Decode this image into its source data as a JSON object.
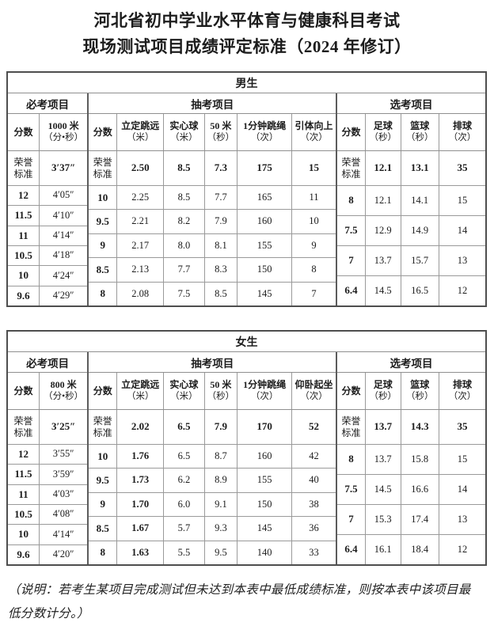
{
  "page": {
    "title_line1": "河北省初中学业水平体育与健康科目考试",
    "title_line2": "现场测试项目成绩评定标准（2024 年修订）",
    "footnote_line1": "（说明：若考生某项目完成测试但未达到本表中最低成绩标准，则按本表中该项目最",
    "footnote_line2": "低分数计分。）"
  },
  "score_header": "分数",
  "honor_label": "荣誉\n标准",
  "tables": [
    {
      "gender": "男生",
      "sections": [
        {
          "name": "必考项目",
          "columns": [
            [
              "1000 米",
              "（分•秒）"
            ]
          ],
          "honor_values": [
            "3′37″"
          ],
          "bold_value_cols": [],
          "rows": [
            {
              "score": "12",
              "values": [
                "4′05″"
              ]
            },
            {
              "score": "11.5",
              "values": [
                "4′10″"
              ]
            },
            {
              "score": "11",
              "values": [
                "4′14″"
              ]
            },
            {
              "score": "10.5",
              "values": [
                "4′18″"
              ]
            },
            {
              "score": "10",
              "values": [
                "4′24″"
              ]
            },
            {
              "score": "9.6",
              "values": [
                "4′29″"
              ]
            }
          ]
        },
        {
          "name": "抽考项目",
          "columns": [
            [
              "立定跳远",
              "（米）"
            ],
            [
              "实心球",
              "（米）"
            ],
            [
              "50 米",
              "（秒）"
            ],
            [
              "1分钟跳绳",
              "（次）"
            ],
            [
              "引体向上",
              "（次）"
            ]
          ],
          "honor_values": [
            "2.50",
            "8.5",
            "7.3",
            "175",
            "15"
          ],
          "bold_value_cols": [],
          "rows": [
            {
              "score": "10",
              "values": [
                "2.25",
                "8.5",
                "7.7",
                "165",
                "11"
              ]
            },
            {
              "score": "9.5",
              "values": [
                "2.21",
                "8.2",
                "7.9",
                "160",
                "10"
              ]
            },
            {
              "score": "9",
              "values": [
                "2.17",
                "8.0",
                "8.1",
                "155",
                "9"
              ]
            },
            {
              "score": "8.5",
              "values": [
                "2.13",
                "7.7",
                "8.3",
                "150",
                "8"
              ]
            },
            {
              "score": "8",
              "values": [
                "2.08",
                "7.5",
                "8.5",
                "145",
                "7"
              ]
            }
          ]
        },
        {
          "name": "选考项目",
          "columns": [
            [
              "足球",
              "（秒）"
            ],
            [
              "篮球",
              "（秒）"
            ],
            [
              "排球",
              "（次）"
            ]
          ],
          "honor_values": [
            "12.1",
            "13.1",
            "35"
          ],
          "bold_value_cols": [],
          "rows": [
            {
              "score": "8",
              "values": [
                "12.1",
                "14.1",
                "15"
              ]
            },
            {
              "score": "7.5",
              "values": [
                "12.9",
                "14.9",
                "14"
              ]
            },
            {
              "score": "7",
              "values": [
                "13.7",
                "15.7",
                "13"
              ]
            },
            {
              "score": "6.4",
              "values": [
                "14.5",
                "16.5",
                "12"
              ]
            }
          ]
        }
      ]
    },
    {
      "gender": "女生",
      "sections": [
        {
          "name": "必考项目",
          "columns": [
            [
              "800 米",
              "（分•秒）"
            ]
          ],
          "honor_values": [
            "3′25″"
          ],
          "bold_value_cols": [],
          "rows": [
            {
              "score": "12",
              "values": [
                "3′55″"
              ]
            },
            {
              "score": "11.5",
              "values": [
                "3′59″"
              ]
            },
            {
              "score": "11",
              "values": [
                "4′03″"
              ]
            },
            {
              "score": "10.5",
              "values": [
                "4′08″"
              ]
            },
            {
              "score": "10",
              "values": [
                "4′14″"
              ]
            },
            {
              "score": "9.6",
              "values": [
                "4′20″"
              ]
            }
          ]
        },
        {
          "name": "抽考项目",
          "columns": [
            [
              "立定跳远",
              "（米）"
            ],
            [
              "实心球",
              "（米）"
            ],
            [
              "50 米",
              "（秒）"
            ],
            [
              "1分钟跳绳",
              "（次）"
            ],
            [
              "仰卧起坐",
              "（次）"
            ]
          ],
          "honor_values": [
            "2.02",
            "6.5",
            "7.9",
            "170",
            "52"
          ],
          "bold_value_cols": [
            0
          ],
          "rows": [
            {
              "score": "10",
              "values": [
                "1.76",
                "6.5",
                "8.7",
                "160",
                "42"
              ]
            },
            {
              "score": "9.5",
              "values": [
                "1.73",
                "6.2",
                "8.9",
                "155",
                "40"
              ]
            },
            {
              "score": "9",
              "values": [
                "1.70",
                "6.0",
                "9.1",
                "150",
                "38"
              ]
            },
            {
              "score": "8.5",
              "values": [
                "1.67",
                "5.7",
                "9.3",
                "145",
                "36"
              ]
            },
            {
              "score": "8",
              "values": [
                "1.63",
                "5.5",
                "9.5",
                "140",
                "33"
              ]
            }
          ]
        },
        {
          "name": "选考项目",
          "columns": [
            [
              "足球",
              "（秒）"
            ],
            [
              "篮球",
              "（秒）"
            ],
            [
              "排球",
              "（次）"
            ]
          ],
          "honor_values": [
            "13.7",
            "14.3",
            "35"
          ],
          "bold_value_cols": [],
          "rows": [
            {
              "score": "8",
              "values": [
                "13.7",
                "15.8",
                "15"
              ]
            },
            {
              "score": "7.5",
              "values": [
                "14.5",
                "16.6",
                "14"
              ]
            },
            {
              "score": "7",
              "values": [
                "15.3",
                "17.4",
                "13"
              ]
            },
            {
              "score": "6.4",
              "values": [
                "16.1",
                "18.4",
                "12"
              ]
            }
          ]
        }
      ]
    }
  ]
}
